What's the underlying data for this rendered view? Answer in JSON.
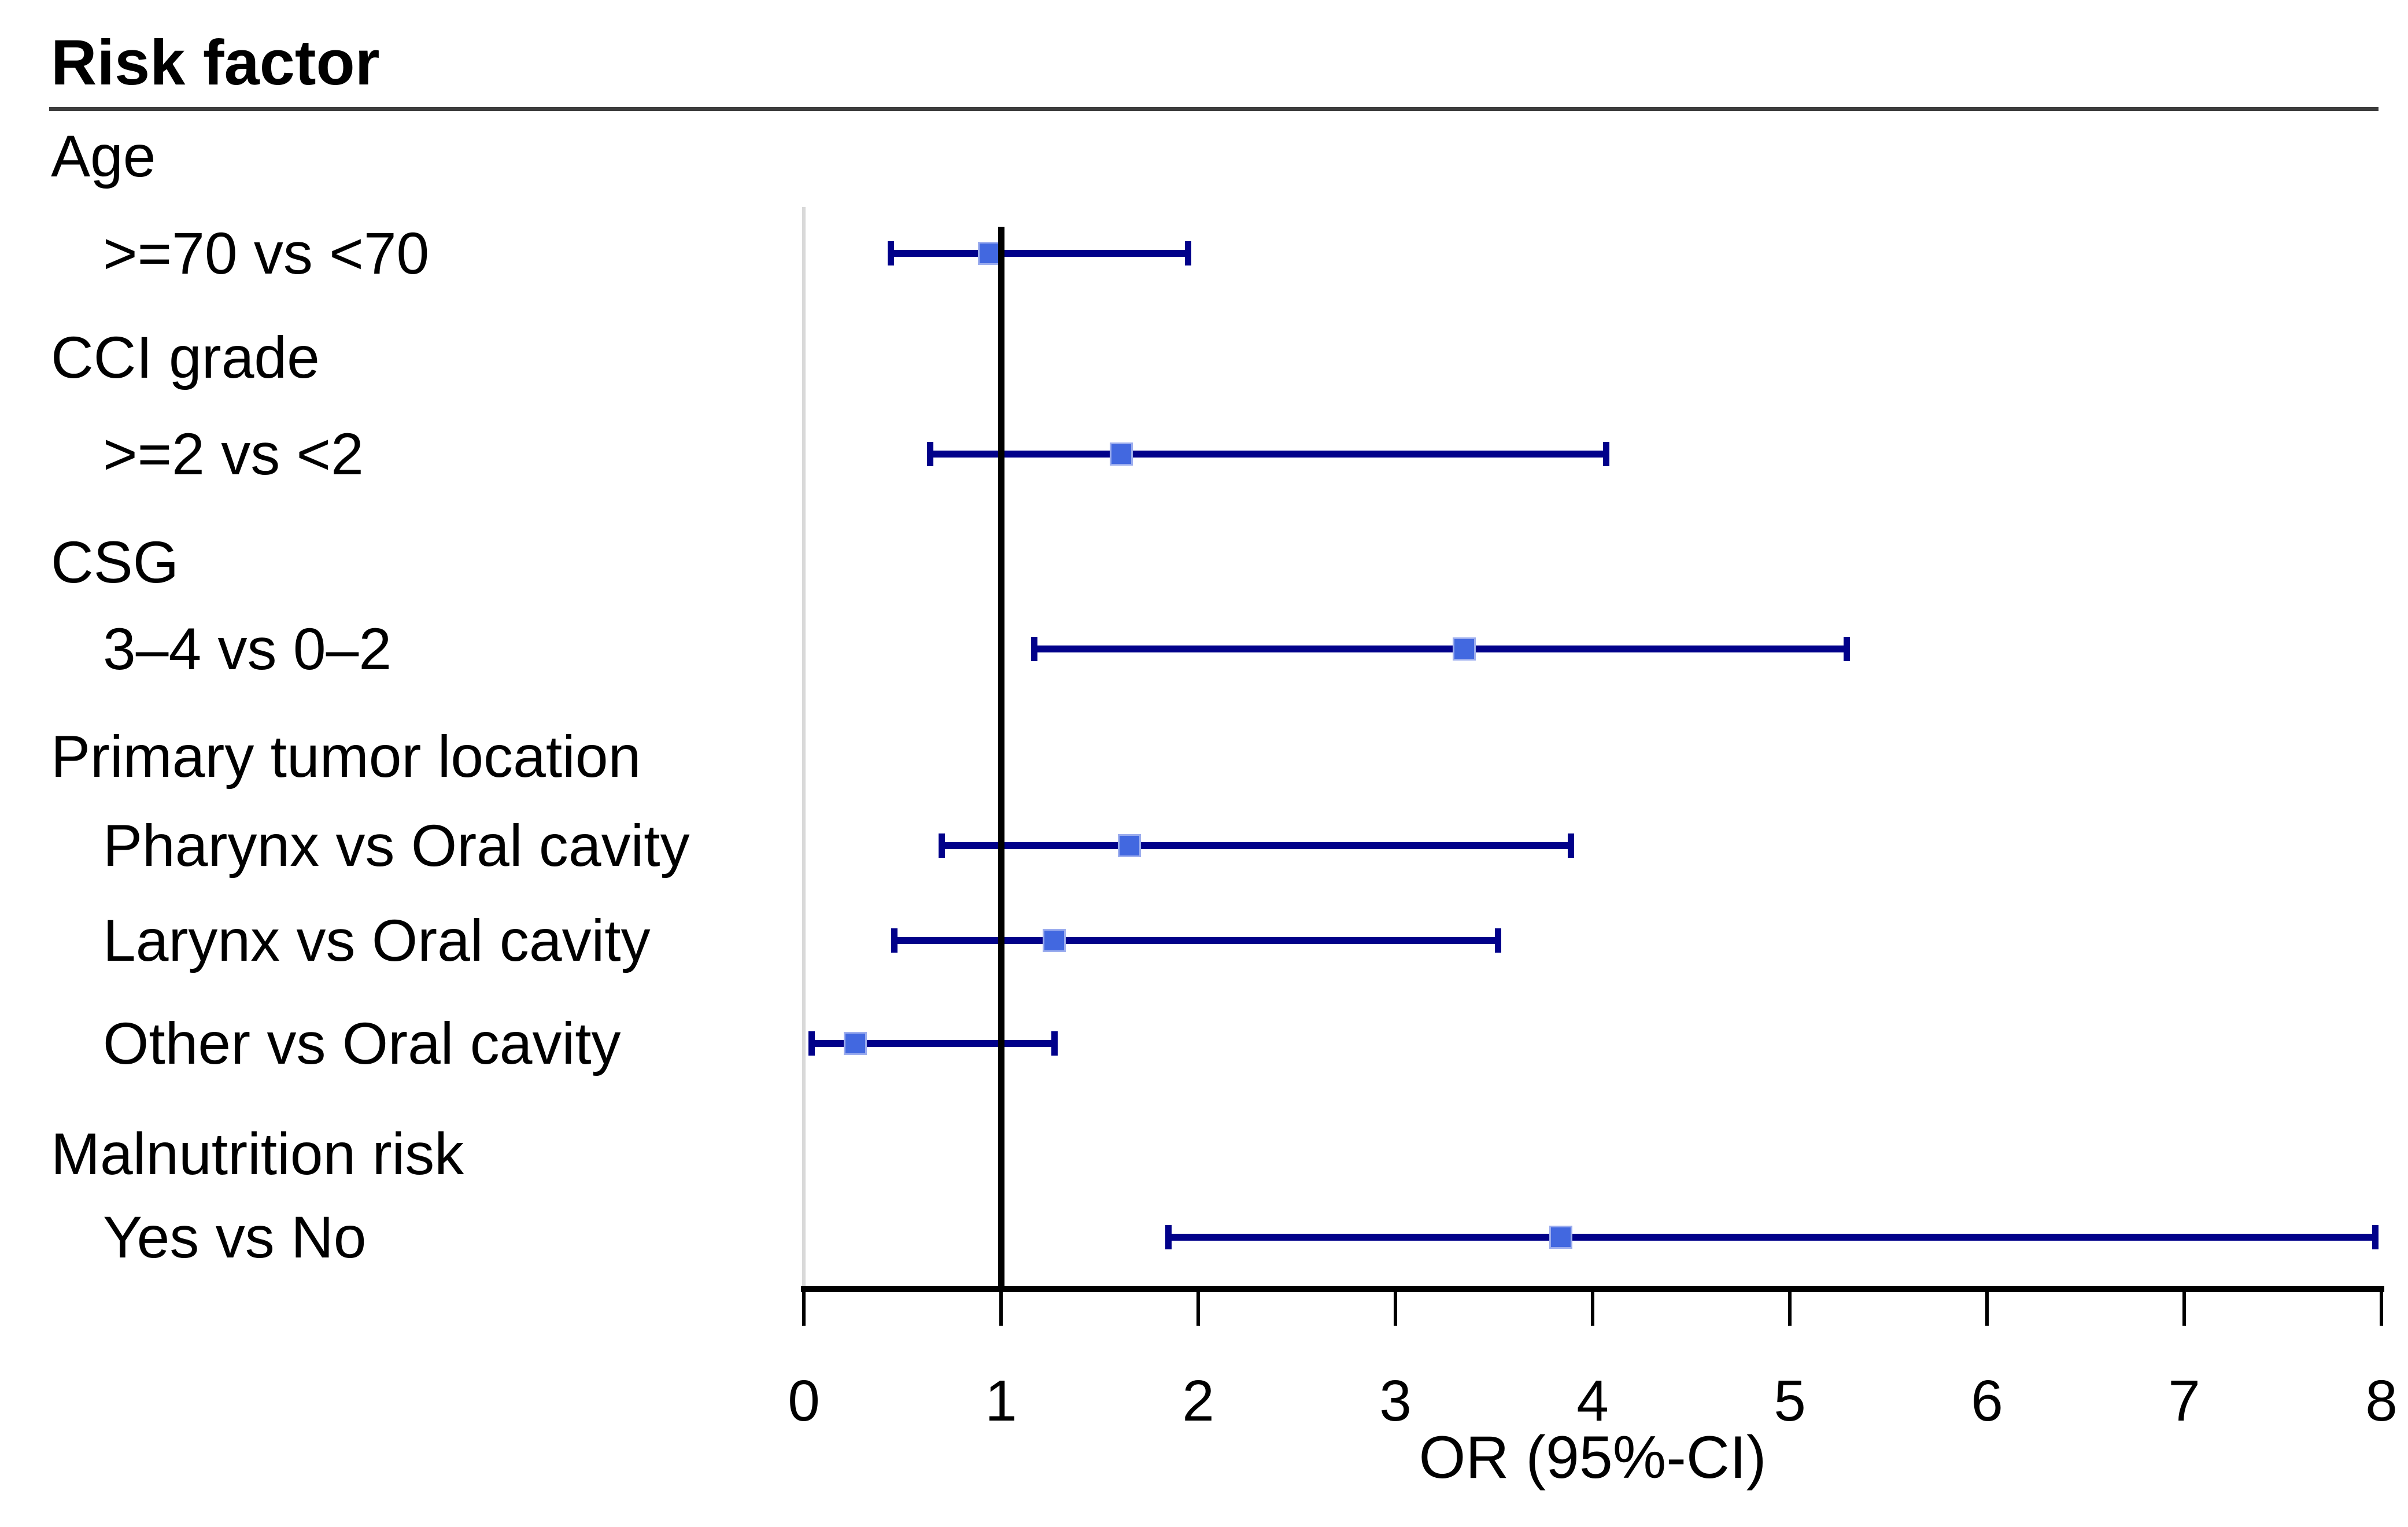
{
  "chart_data": {
    "type": "scatter",
    "variant": "forest-plot",
    "title": "Risk factor",
    "xlabel": "OR (95%-CI)",
    "xlim": [
      0,
      8
    ],
    "x_ticks": [
      0,
      1,
      2,
      3,
      4,
      5,
      6,
      7,
      8
    ],
    "reference_line_x": 1,
    "grid": false,
    "rows": [
      {
        "label": "Age",
        "kind": "group"
      },
      {
        "label": ">=70 vs <70",
        "kind": "estimate",
        "or": 0.94,
        "ci_low": 0.44,
        "ci_high": 1.95
      },
      {
        "label": "CCI grade",
        "kind": "group"
      },
      {
        "label": ">=2 vs <2",
        "kind": "estimate",
        "or": 1.61,
        "ci_low": 0.64,
        "ci_high": 4.07
      },
      {
        "label": "CSG",
        "kind": "group"
      },
      {
        "label": "3–4 vs 0–2",
        "kind": "estimate",
        "or": 3.35,
        "ci_low": 1.17,
        "ci_high": 5.29
      },
      {
        "label": "Primary tumor location",
        "kind": "group"
      },
      {
        "label": "Pharynx vs Oral cavity",
        "kind": "estimate",
        "or": 1.65,
        "ci_low": 0.7,
        "ci_high": 3.89
      },
      {
        "label": "Larynx vs Oral cavity",
        "kind": "estimate",
        "or": 1.27,
        "ci_low": 0.46,
        "ci_high": 3.52
      },
      {
        "label": "Other vs Oral cavity",
        "kind": "estimate",
        "or": 0.26,
        "ci_low": 0.04,
        "ci_high": 1.27
      },
      {
        "label": "Malnutrition risk",
        "kind": "group"
      },
      {
        "label": "Yes vs No",
        "kind": "estimate",
        "or": 3.84,
        "ci_low": 1.85,
        "ci_high": 7.97
      }
    ],
    "colors": {
      "marker_fill": "#4268e0",
      "marker_border": "#9cadee",
      "ci_line": "#01018a",
      "reference_line": "#000000",
      "axis": "#000000",
      "zero_boundary_line": "#d9d9d9",
      "header_rule": "#3d3d3d",
      "text": "#000000",
      "background": "#ffffff"
    }
  }
}
